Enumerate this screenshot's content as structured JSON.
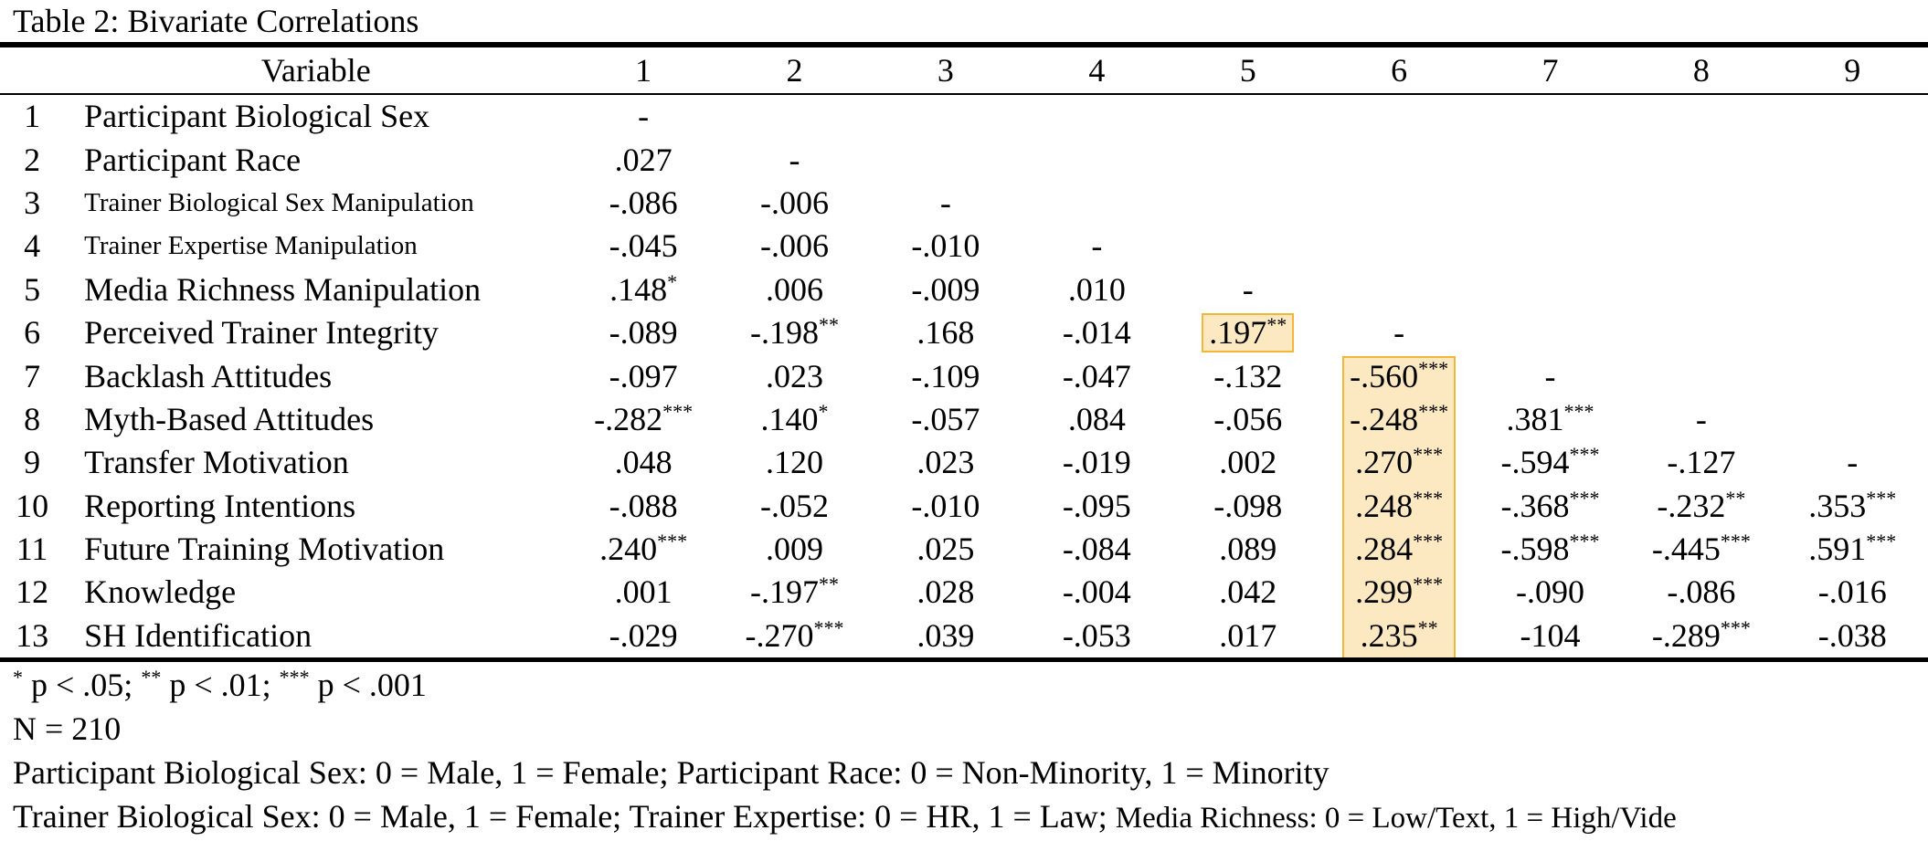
{
  "caption": "Table 2: Bivariate Correlations",
  "columns": {
    "variable_header": "Variable",
    "numbers": [
      "1",
      "2",
      "3",
      "4",
      "5",
      "6",
      "7",
      "8",
      "9"
    ]
  },
  "rows": [
    {
      "num": "1",
      "label": "Participant Biological Sex",
      "cells": [
        {
          "v": "-",
          "s": ""
        },
        null,
        null,
        null,
        null,
        null,
        null,
        null,
        null
      ]
    },
    {
      "num": "2",
      "label": "Participant Race",
      "cells": [
        {
          "v": ".027",
          "s": ""
        },
        {
          "v": "-",
          "s": ""
        },
        null,
        null,
        null,
        null,
        null,
        null,
        null
      ]
    },
    {
      "num": "3",
      "label": "Trainer Biological Sex Manipulation",
      "cells": [
        {
          "v": "-.086",
          "s": ""
        },
        {
          "v": "-.006",
          "s": ""
        },
        {
          "v": "-",
          "s": ""
        },
        null,
        null,
        null,
        null,
        null,
        null
      ]
    },
    {
      "num": "4",
      "label": "Trainer Expertise Manipulation",
      "cells": [
        {
          "v": "-.045",
          "s": ""
        },
        {
          "v": "-.006",
          "s": ""
        },
        {
          "v": "-.010",
          "s": ""
        },
        {
          "v": "-",
          "s": ""
        },
        null,
        null,
        null,
        null,
        null
      ]
    },
    {
      "num": "5",
      "label": "Media Richness Manipulation",
      "cells": [
        {
          "v": ".148",
          "s": "*"
        },
        {
          "v": ".006",
          "s": ""
        },
        {
          "v": "-.009",
          "s": ""
        },
        {
          "v": ".010",
          "s": ""
        },
        {
          "v": "-",
          "s": ""
        },
        null,
        null,
        null,
        null
      ]
    },
    {
      "num": "6",
      "label": "Perceived Trainer Integrity",
      "cells": [
        {
          "v": "-.089",
          "s": ""
        },
        {
          "v": "-.198",
          "s": "**"
        },
        {
          "v": ".168",
          "s": ""
        },
        {
          "v": "-.014",
          "s": ""
        },
        {
          "v": ".197",
          "s": "**"
        },
        {
          "v": "-",
          "s": ""
        },
        null,
        null,
        null
      ]
    },
    {
      "num": "7",
      "label": "Backlash Attitudes",
      "cells": [
        {
          "v": "-.097",
          "s": ""
        },
        {
          "v": ".023",
          "s": ""
        },
        {
          "v": "-.109",
          "s": ""
        },
        {
          "v": "-.047",
          "s": ""
        },
        {
          "v": "-.132",
          "s": ""
        },
        {
          "v": "-.560",
          "s": "***"
        },
        {
          "v": "-",
          "s": ""
        },
        null,
        null
      ]
    },
    {
      "num": "8",
      "label": "Myth-Based Attitudes",
      "cells": [
        {
          "v": "-.282",
          "s": "***"
        },
        {
          "v": ".140",
          "s": "*"
        },
        {
          "v": "-.057",
          "s": ""
        },
        {
          "v": ".084",
          "s": ""
        },
        {
          "v": "-.056",
          "s": ""
        },
        {
          "v": "-.248",
          "s": "***"
        },
        {
          "v": ".381",
          "s": "***"
        },
        {
          "v": "-",
          "s": ""
        },
        null
      ]
    },
    {
      "num": "9",
      "label": "Transfer Motivation",
      "cells": [
        {
          "v": ".048",
          "s": ""
        },
        {
          "v": ".120",
          "s": ""
        },
        {
          "v": ".023",
          "s": ""
        },
        {
          "v": "-.019",
          "s": ""
        },
        {
          "v": ".002",
          "s": ""
        },
        {
          "v": ".270",
          "s": "***"
        },
        {
          "v": "-.594",
          "s": "***"
        },
        {
          "v": "-.127",
          "s": ""
        },
        {
          "v": "-",
          "s": ""
        }
      ]
    },
    {
      "num": "10",
      "label": "Reporting Intentions",
      "cells": [
        {
          "v": "-.088",
          "s": ""
        },
        {
          "v": "-.052",
          "s": ""
        },
        {
          "v": "-.010",
          "s": ""
        },
        {
          "v": "-.095",
          "s": ""
        },
        {
          "v": "-.098",
          "s": ""
        },
        {
          "v": ".248",
          "s": "***"
        },
        {
          "v": "-.368",
          "s": "***"
        },
        {
          "v": "-.232",
          "s": "**"
        },
        {
          "v": ".353",
          "s": "***"
        }
      ]
    },
    {
      "num": "11",
      "label": "Future Training Motivation",
      "cells": [
        {
          "v": ".240",
          "s": "***"
        },
        {
          "v": ".009",
          "s": ""
        },
        {
          "v": ".025",
          "s": ""
        },
        {
          "v": "-.084",
          "s": ""
        },
        {
          "v": ".089",
          "s": ""
        },
        {
          "v": ".284",
          "s": "***"
        },
        {
          "v": "-.598",
          "s": "***"
        },
        {
          "v": "-.445",
          "s": "***"
        },
        {
          "v": ".591",
          "s": "***"
        }
      ]
    },
    {
      "num": "12",
      "label": "Knowledge",
      "cells": [
        {
          "v": ".001",
          "s": ""
        },
        {
          "v": "-.197",
          "s": "**"
        },
        {
          "v": ".028",
          "s": ""
        },
        {
          "v": "-.004",
          "s": ""
        },
        {
          "v": ".042",
          "s": ""
        },
        {
          "v": ".299",
          "s": "***"
        },
        {
          "v": "-.090",
          "s": ""
        },
        {
          "v": "-.086",
          "s": ""
        },
        {
          "v": "-.016",
          "s": ""
        }
      ]
    },
    {
      "num": "13",
      "label": "SH Identification",
      "cells": [
        {
          "v": "-.029",
          "s": ""
        },
        {
          "v": "-.270",
          "s": "***"
        },
        {
          "v": ".039",
          "s": ""
        },
        {
          "v": "-.053",
          "s": ""
        },
        {
          "v": ".017",
          "s": ""
        },
        {
          "v": ".235",
          "s": "**"
        },
        {
          "v": "-104",
          "s": ""
        },
        {
          "v": "-.289",
          "s": "***"
        },
        {
          "v": "-.038",
          "s": ""
        }
      ]
    }
  ],
  "small_label_rows": [
    "3",
    "4"
  ],
  "highlight": {
    "color": "#fde9c1",
    "border_color": "#f2b73a",
    "single_cell": {
      "row": "6",
      "col": "5"
    },
    "column_block": {
      "col": "6",
      "from_row": "7",
      "to_row": "13"
    }
  },
  "notes": {
    "sig_1": "*",
    "sig_1_text": " p < .05; ",
    "sig_2": "**",
    "sig_2_text": " p < .01; ",
    "sig_3": "***",
    "sig_3_text": " p < .001",
    "n_line": "N = 210",
    "coding_line_1": "Participant Biological Sex: 0 = Male, 1 = Female; Participant Race: 0 = Non-Minority, 1 = Minority",
    "coding_line_2a": "Trainer Biological Sex: 0 = Male, 1 = Female; Trainer Expertise: 0 = HR, 1 = Law; ",
    "coding_line_2b": "Media Richness: 0 = Low/Text, 1 = High/Vide"
  }
}
